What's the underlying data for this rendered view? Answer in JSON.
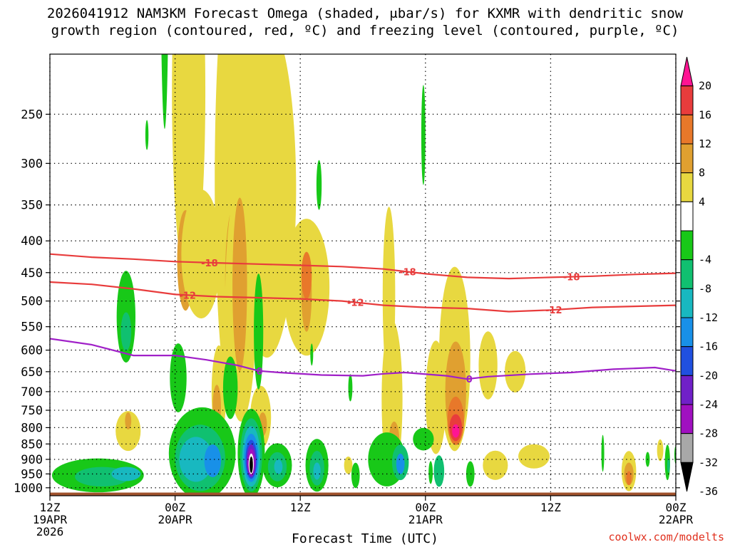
{
  "title_line1": "2026041912 NAM3KM Forecast Omega (shaded, μbar/s) for KXMR with dendritic snow",
  "title_line2": "growth region (contoured, red, ºC) and freezing level (contoured, purple, ºC)",
  "credit": "coolwx.com/modelts",
  "chart_data": {
    "type": "time-height-cross-section",
    "xlabel": "Forecast Time (UTC)",
    "x_hours_range": [
      0,
      60
    ],
    "y_pressure_range_hPa": [
      1030,
      200
    ],
    "y_ticks": [
      250,
      300,
      350,
      400,
      450,
      500,
      550,
      600,
      650,
      700,
      750,
      800,
      850,
      900,
      950,
      1000
    ],
    "x_ticks": [
      {
        "hour": 0,
        "line1": "12Z",
        "line2": "19APR",
        "line3": "2026"
      },
      {
        "hour": 12,
        "line1": "00Z",
        "line2": "20APR",
        "line3": ""
      },
      {
        "hour": 24,
        "line1": "12Z",
        "line2": "",
        "line3": ""
      },
      {
        "hour": 36,
        "line1": "00Z",
        "line2": "21APR",
        "line3": ""
      },
      {
        "hour": 48,
        "line1": "12Z",
        "line2": "",
        "line3": ""
      },
      {
        "hour": 60,
        "line1": "00Z",
        "line2": "22APR",
        "line3": ""
      }
    ],
    "colorbar": {
      "labels": [
        "20",
        "16",
        "12",
        "8",
        "4",
        "-4",
        "-8",
        "-12",
        "-16",
        "-20",
        "-24",
        "-28",
        "-32",
        "-36"
      ],
      "colors": [
        "#ff1493",
        "#e83c3c",
        "#e8782a",
        "#e0a030",
        "#e8d840",
        "#ffffff",
        "#18c818",
        "#10c070",
        "#18b8c0",
        "#1890e8",
        "#2050e0",
        "#7020c8",
        "#a010c0",
        "#a8a8a8",
        "#000000"
      ]
    },
    "contours": [
      {
        "name": "-18 °C",
        "color": "#e83c3c",
        "label": "-18",
        "points": [
          [
            0,
            420
          ],
          [
            4,
            425
          ],
          [
            8,
            428
          ],
          [
            12,
            432
          ],
          [
            16,
            434
          ],
          [
            20,
            436
          ],
          [
            24,
            438
          ],
          [
            28,
            440
          ],
          [
            32,
            444
          ],
          [
            36,
            452
          ],
          [
            40,
            458
          ],
          [
            44,
            460
          ],
          [
            48,
            458
          ],
          [
            52,
            456
          ],
          [
            56,
            453
          ],
          [
            60,
            451
          ]
        ],
        "label_hours": [
          15.3,
          34.3,
          50.0
        ]
      },
      {
        "name": "-12 °C",
        "color": "#e83c3c",
        "label": "-12",
        "points": [
          [
            0,
            466
          ],
          [
            4,
            470
          ],
          [
            8,
            478
          ],
          [
            12,
            488
          ],
          [
            16,
            492
          ],
          [
            20,
            494
          ],
          [
            24,
            496
          ],
          [
            28,
            500
          ],
          [
            32,
            508
          ],
          [
            36,
            512
          ],
          [
            40,
            514
          ],
          [
            44,
            520
          ],
          [
            48,
            517
          ],
          [
            52,
            512
          ],
          [
            56,
            510
          ],
          [
            60,
            508
          ]
        ],
        "label_hours": [
          13.2,
          29.3,
          48.3
        ]
      },
      {
        "name": "freezing level 0 °C",
        "color": "#a020c8",
        "label": "0",
        "points": [
          [
            0,
            575
          ],
          [
            4,
            588
          ],
          [
            8,
            612
          ],
          [
            12,
            612
          ],
          [
            15,
            622
          ],
          [
            18,
            635
          ],
          [
            20,
            648
          ],
          [
            22,
            652
          ],
          [
            26,
            658
          ],
          [
            30,
            660
          ],
          [
            32,
            655
          ],
          [
            34,
            652
          ],
          [
            38,
            660
          ],
          [
            40,
            668
          ],
          [
            42,
            662
          ],
          [
            46,
            656
          ],
          [
            50,
            652
          ],
          [
            54,
            644
          ],
          [
            58,
            640
          ],
          [
            60,
            648
          ]
        ],
        "label_hours": [
          20.1,
          40.2
        ]
      }
    ],
    "omega_blobs": [
      {
        "h": 13.3,
        "p": 230,
        "rh": 1.6,
        "rp": 160,
        "lvl": "4"
      },
      {
        "h": 13.0,
        "p": 430,
        "rh": 0.8,
        "rp": 80,
        "lvl": "8"
      },
      {
        "h": 14.5,
        "p": 420,
        "rh": 1.9,
        "rp": 100,
        "lvl": "4"
      },
      {
        "h": 17.6,
        "p": 320,
        "rh": 1.8,
        "rp": 260,
        "lvl": "4"
      },
      {
        "h": 17.6,
        "p": 460,
        "rh": 0.8,
        "rp": 120,
        "lvl": "8"
      },
      {
        "h": 19.3,
        "p": 180,
        "rh": 1.0,
        "rp": 120,
        "lvl": "4"
      },
      {
        "h": 20.8,
        "p": 330,
        "rh": 2.8,
        "rp": 200,
        "lvl": "4"
      },
      {
        "h": 18.3,
        "p": 500,
        "rh": 1.5,
        "rp": 220,
        "lvl": "4"
      },
      {
        "h": 18.2,
        "p": 470,
        "rh": 0.7,
        "rp": 150,
        "lvl": "8"
      },
      {
        "h": 24.6,
        "p": 475,
        "rh": 2.2,
        "rp": 120,
        "lvl": "4"
      },
      {
        "h": 16.2,
        "p": 700,
        "rh": 0.7,
        "rp": 120,
        "lvl": "4"
      },
      {
        "h": 16.0,
        "p": 740,
        "rh": 0.4,
        "rp": 60,
        "lvl": "8"
      },
      {
        "h": 20.2,
        "p": 770,
        "rh": 1.0,
        "rp": 90,
        "lvl": "4"
      },
      {
        "h": 20.4,
        "p": 790,
        "rh": 0.4,
        "rp": 35,
        "lvl": "8"
      },
      {
        "h": 24.6,
        "p": 485,
        "rh": 0.5,
        "rp": 70,
        "lvl": "8"
      },
      {
        "h": 24.6,
        "p": 455,
        "rh": 0.5,
        "rp": 40,
        "lvl": "12"
      },
      {
        "h": 32.5,
        "p": 490,
        "rh": 0.6,
        "rp": 160,
        "lvl": "4"
      },
      {
        "h": 32.8,
        "p": 720,
        "rh": 1.0,
        "rp": 210,
        "lvl": "4"
      },
      {
        "h": 33.0,
        "p": 840,
        "rh": 0.5,
        "rp": 60,
        "lvl": "8"
      },
      {
        "h": 37.0,
        "p": 715,
        "rh": 1.0,
        "rp": 150,
        "lvl": "4"
      },
      {
        "h": 38.8,
        "p": 620,
        "rh": 1.5,
        "rp": 210,
        "lvl": "4"
      },
      {
        "h": 38.9,
        "p": 700,
        "rh": 1.0,
        "rp": 130,
        "lvl": "8"
      },
      {
        "h": 38.9,
        "p": 780,
        "rh": 0.8,
        "rp": 70,
        "lvl": "12"
      },
      {
        "h": 38.9,
        "p": 800,
        "rh": 0.6,
        "rp": 40,
        "lvl": "16"
      },
      {
        "h": 38.9,
        "p": 810,
        "rh": 0.35,
        "rp": 20,
        "lvl": "20"
      },
      {
        "h": 42.0,
        "p": 635,
        "rh": 0.9,
        "rp": 80,
        "lvl": "4"
      },
      {
        "h": 44.6,
        "p": 650,
        "rh": 1.0,
        "rp": 50,
        "lvl": "4"
      },
      {
        "h": 7.5,
        "p": 810,
        "rh": 1.2,
        "rp": 60,
        "lvl": "4"
      },
      {
        "h": 7.5,
        "p": 780,
        "rh": 0.3,
        "rp": 25,
        "lvl": "8"
      },
      {
        "h": 42.7,
        "p": 920,
        "rh": 1.2,
        "rp": 50,
        "lvl": "4"
      },
      {
        "h": 46.4,
        "p": 890,
        "rh": 1.5,
        "rp": 40,
        "lvl": "4"
      },
      {
        "h": 55.5,
        "p": 940,
        "rh": 0.7,
        "rp": 70,
        "lvl": "4"
      },
      {
        "h": 55.5,
        "p": 950,
        "rh": 0.45,
        "rp": 40,
        "lvl": "8"
      },
      {
        "h": 55.5,
        "p": 965,
        "rh": 0.25,
        "rp": 25,
        "lvl": "12"
      },
      {
        "h": 58.5,
        "p": 870,
        "rh": 0.3,
        "rp": 35,
        "lvl": "4"
      },
      {
        "h": 28.6,
        "p": 920,
        "rh": 0.4,
        "rp": 30,
        "lvl": "4"
      },
      {
        "h": 33.0,
        "p": 880,
        "rh": 0.7,
        "rp": 60,
        "lvl": "8"
      }
    ],
    "omega_neg_blobs": [
      {
        "h": 11.0,
        "p": 120,
        "rh": 0.4,
        "rp": 90,
        "lvl": "-4"
      },
      {
        "h": 9.3,
        "p": 270,
        "rh": 0.15,
        "rp": 15,
        "lvl": "-4"
      },
      {
        "h": 7.3,
        "p": 530,
        "rh": 0.9,
        "rp": 90,
        "lvl": "-4"
      },
      {
        "h": 7.3,
        "p": 560,
        "rh": 0.5,
        "rp": 40,
        "lvl": "-8"
      },
      {
        "h": 12.3,
        "p": 665,
        "rh": 0.8,
        "rp": 85,
        "lvl": "-4"
      },
      {
        "h": 17.3,
        "p": 690,
        "rh": 0.7,
        "rp": 80,
        "lvl": "-4"
      },
      {
        "h": 20.0,
        "p": 560,
        "rh": 0.45,
        "rp": 120,
        "lvl": "-4"
      },
      {
        "h": 25.8,
        "p": 325,
        "rh": 0.25,
        "rp": 30,
        "lvl": "-4"
      },
      {
        "h": 35.8,
        "p": 270,
        "rh": 0.2,
        "rp": 50,
        "lvl": "-4"
      },
      {
        "h": 28.8,
        "p": 690,
        "rh": 0.2,
        "rp": 35,
        "lvl": "-4"
      },
      {
        "h": 25.1,
        "p": 610,
        "rh": 0.12,
        "rp": 25,
        "lvl": "-4"
      },
      {
        "h": 4.6,
        "p": 955,
        "rh": 4.4,
        "rp": 60,
        "lvl": "-4"
      },
      {
        "h": 5.0,
        "p": 960,
        "rh": 2.6,
        "rp": 35,
        "lvl": "-8"
      },
      {
        "h": 7.3,
        "p": 950,
        "rh": 1.4,
        "rp": 25,
        "lvl": "-12"
      },
      {
        "h": 14.6,
        "p": 880,
        "rh": 3.2,
        "rp": 150,
        "lvl": "-4"
      },
      {
        "h": 14.4,
        "p": 895,
        "rh": 2.4,
        "rp": 110,
        "lvl": "-8"
      },
      {
        "h": 14.0,
        "p": 900,
        "rh": 1.6,
        "rp": 75,
        "lvl": "-12"
      },
      {
        "h": 15.6,
        "p": 905,
        "rh": 0.8,
        "rp": 55,
        "lvl": "-16"
      },
      {
        "h": 19.3,
        "p": 880,
        "rh": 1.3,
        "rp": 145,
        "lvl": "-4"
      },
      {
        "h": 19.3,
        "p": 885,
        "rh": 1.05,
        "rp": 120,
        "lvl": "-8"
      },
      {
        "h": 19.3,
        "p": 890,
        "rh": 0.85,
        "rp": 100,
        "lvl": "-12"
      },
      {
        "h": 19.3,
        "p": 895,
        "rh": 0.7,
        "rp": 80,
        "lvl": "-16"
      },
      {
        "h": 19.3,
        "p": 900,
        "rh": 0.55,
        "rp": 65,
        "lvl": "-20"
      },
      {
        "h": 19.3,
        "p": 905,
        "rh": 0.45,
        "rp": 55,
        "lvl": "-24"
      },
      {
        "h": 19.3,
        "p": 910,
        "rh": 0.35,
        "rp": 45,
        "lvl": "-28"
      },
      {
        "h": 19.3,
        "p": 915,
        "rh": 0.25,
        "rp": 35,
        "lvl": "-32"
      },
      {
        "h": 19.3,
        "p": 918,
        "rh": 0.16,
        "rp": 28,
        "lvl": "-36"
      },
      {
        "h": 21.8,
        "p": 920,
        "rh": 1.4,
        "rp": 75,
        "lvl": "-4"
      },
      {
        "h": 21.8,
        "p": 925,
        "rh": 0.9,
        "rp": 50,
        "lvl": "-8"
      },
      {
        "h": 21.9,
        "p": 925,
        "rh": 0.4,
        "rp": 25,
        "lvl": "-12"
      },
      {
        "h": 25.6,
        "p": 920,
        "rh": 1.1,
        "rp": 90,
        "lvl": "-4"
      },
      {
        "h": 25.6,
        "p": 930,
        "rh": 0.7,
        "rp": 60,
        "lvl": "-8"
      },
      {
        "h": 25.6,
        "p": 940,
        "rh": 0.35,
        "rp": 30,
        "lvl": "-12"
      },
      {
        "h": 29.3,
        "p": 955,
        "rh": 0.4,
        "rp": 45,
        "lvl": "-4"
      },
      {
        "h": 32.3,
        "p": 900,
        "rh": 1.8,
        "rp": 90,
        "lvl": "-4"
      },
      {
        "h": 33.6,
        "p": 910,
        "rh": 0.8,
        "rp": 60,
        "lvl": "-8"
      },
      {
        "h": 33.6,
        "p": 915,
        "rh": 0.4,
        "rp": 35,
        "lvl": "-16"
      },
      {
        "h": 35.8,
        "p": 835,
        "rh": 1.0,
        "rp": 35,
        "lvl": "-4"
      },
      {
        "h": 36.5,
        "p": 945,
        "rh": 0.2,
        "rp": 40,
        "lvl": "-4"
      },
      {
        "h": 37.3,
        "p": 940,
        "rh": 0.5,
        "rp": 55,
        "lvl": "-8"
      },
      {
        "h": 40.3,
        "p": 950,
        "rh": 0.4,
        "rp": 45,
        "lvl": "-4"
      },
      {
        "h": 53.0,
        "p": 880,
        "rh": 0.1,
        "rp": 60,
        "lvl": "-4"
      },
      {
        "h": 57.3,
        "p": 900,
        "rh": 0.2,
        "rp": 25,
        "lvl": "-4"
      },
      {
        "h": 59.2,
        "p": 910,
        "rh": 0.25,
        "rp": 60,
        "lvl": "-4"
      },
      {
        "h": 59.3,
        "p": 920,
        "rh": 0.13,
        "rp": 25,
        "lvl": "-8"
      },
      {
        "h": 60.0,
        "p": 885,
        "rh": 0.1,
        "rp": 30,
        "lvl": "-4"
      }
    ]
  }
}
